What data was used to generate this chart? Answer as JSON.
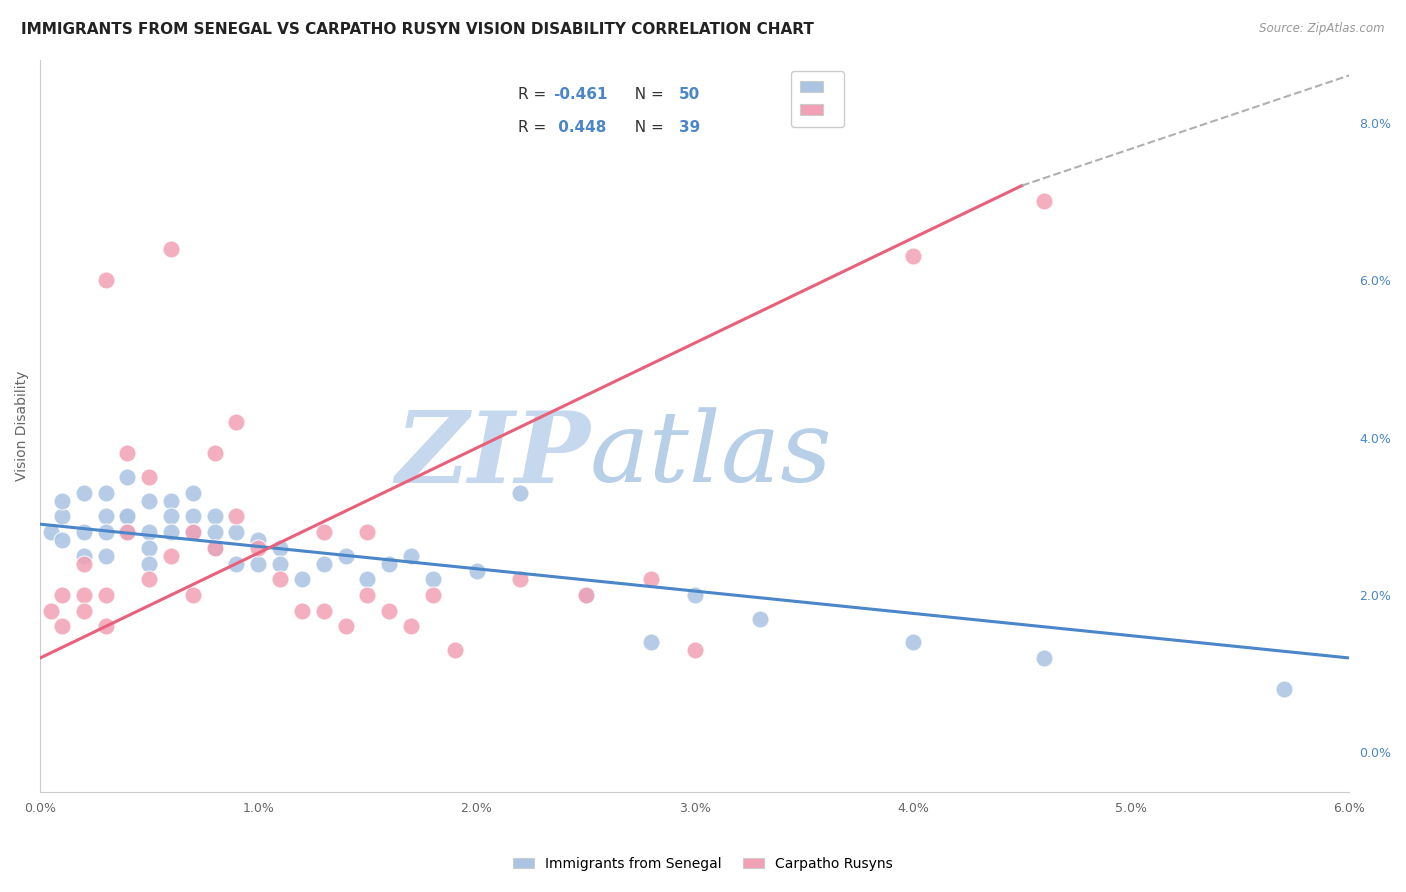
{
  "title": "IMMIGRANTS FROM SENEGAL VS CARPATHO RUSYN VISION DISABILITY CORRELATION CHART",
  "source_text": "Source: ZipAtlas.com",
  "ylabel": "Vision Disability",
  "xlim": [
    0.0,
    0.06
  ],
  "ylim": [
    -0.005,
    0.088
  ],
  "xticks": [
    0.0,
    0.01,
    0.02,
    0.03,
    0.04,
    0.05,
    0.06
  ],
  "xticklabels": [
    "0.0%",
    "1.0%",
    "2.0%",
    "3.0%",
    "4.0%",
    "5.0%",
    "6.0%"
  ],
  "yticks_right": [
    0.0,
    0.02,
    0.04,
    0.06,
    0.08
  ],
  "yticklabels_right": [
    "0.0%",
    "2.0%",
    "4.0%",
    "6.0%",
    "8.0%"
  ],
  "blue_color": "#aac4e2",
  "pink_color": "#f2a0b5",
  "blue_line_color": "#4a86c8",
  "pink_line_color": "#e8607a",
  "legend_R_blue": "R = -0.461",
  "legend_N_blue": "N = 50",
  "legend_R_pink": "R =  0.448",
  "legend_N_pink": "N = 39",
  "blue_scatter_x": [
    0.0005,
    0.001,
    0.001,
    0.001,
    0.002,
    0.002,
    0.002,
    0.003,
    0.003,
    0.003,
    0.003,
    0.004,
    0.004,
    0.004,
    0.004,
    0.005,
    0.005,
    0.005,
    0.005,
    0.006,
    0.006,
    0.006,
    0.007,
    0.007,
    0.007,
    0.008,
    0.008,
    0.008,
    0.009,
    0.009,
    0.01,
    0.01,
    0.011,
    0.011,
    0.012,
    0.013,
    0.014,
    0.015,
    0.016,
    0.017,
    0.018,
    0.02,
    0.022,
    0.025,
    0.028,
    0.03,
    0.033,
    0.04,
    0.046,
    0.057
  ],
  "blue_scatter_y": [
    0.028,
    0.03,
    0.027,
    0.032,
    0.033,
    0.028,
    0.025,
    0.033,
    0.03,
    0.028,
    0.025,
    0.035,
    0.03,
    0.03,
    0.028,
    0.032,
    0.028,
    0.026,
    0.024,
    0.032,
    0.03,
    0.028,
    0.033,
    0.03,
    0.028,
    0.03,
    0.028,
    0.026,
    0.028,
    0.024,
    0.027,
    0.024,
    0.026,
    0.024,
    0.022,
    0.024,
    0.025,
    0.022,
    0.024,
    0.025,
    0.022,
    0.023,
    0.033,
    0.02,
    0.014,
    0.02,
    0.017,
    0.014,
    0.012,
    0.008
  ],
  "pink_scatter_x": [
    0.0005,
    0.001,
    0.001,
    0.002,
    0.002,
    0.002,
    0.003,
    0.003,
    0.003,
    0.004,
    0.004,
    0.005,
    0.005,
    0.006,
    0.006,
    0.007,
    0.007,
    0.008,
    0.008,
    0.009,
    0.009,
    0.01,
    0.011,
    0.012,
    0.013,
    0.013,
    0.014,
    0.015,
    0.015,
    0.016,
    0.017,
    0.018,
    0.019,
    0.022,
    0.025,
    0.028,
    0.03,
    0.04,
    0.046
  ],
  "pink_scatter_y": [
    0.018,
    0.02,
    0.016,
    0.024,
    0.02,
    0.018,
    0.06,
    0.02,
    0.016,
    0.038,
    0.028,
    0.035,
    0.022,
    0.064,
    0.025,
    0.028,
    0.02,
    0.038,
    0.026,
    0.042,
    0.03,
    0.026,
    0.022,
    0.018,
    0.028,
    0.018,
    0.016,
    0.028,
    0.02,
    0.018,
    0.016,
    0.02,
    0.013,
    0.022,
    0.02,
    0.022,
    0.013,
    0.063,
    0.07
  ],
  "blue_trend_x": [
    0.0,
    0.06
  ],
  "blue_trend_y": [
    0.029,
    0.012
  ],
  "pink_trend_x": [
    0.0,
    0.045
  ],
  "pink_trend_y": [
    0.012,
    0.072
  ],
  "dashed_trend_x": [
    0.045,
    0.06
  ],
  "dashed_trend_y": [
    0.072,
    0.086
  ],
  "watermark_zip": "ZIP",
  "watermark_atlas": "atlas",
  "watermark_color_zip": "#c5d8ee",
  "watermark_color_atlas": "#b8cfe8",
  "grid_color": "#e0e0e0",
  "background_color": "#ffffff",
  "title_fontsize": 11,
  "axis_label_fontsize": 10,
  "tick_fontsize": 9
}
